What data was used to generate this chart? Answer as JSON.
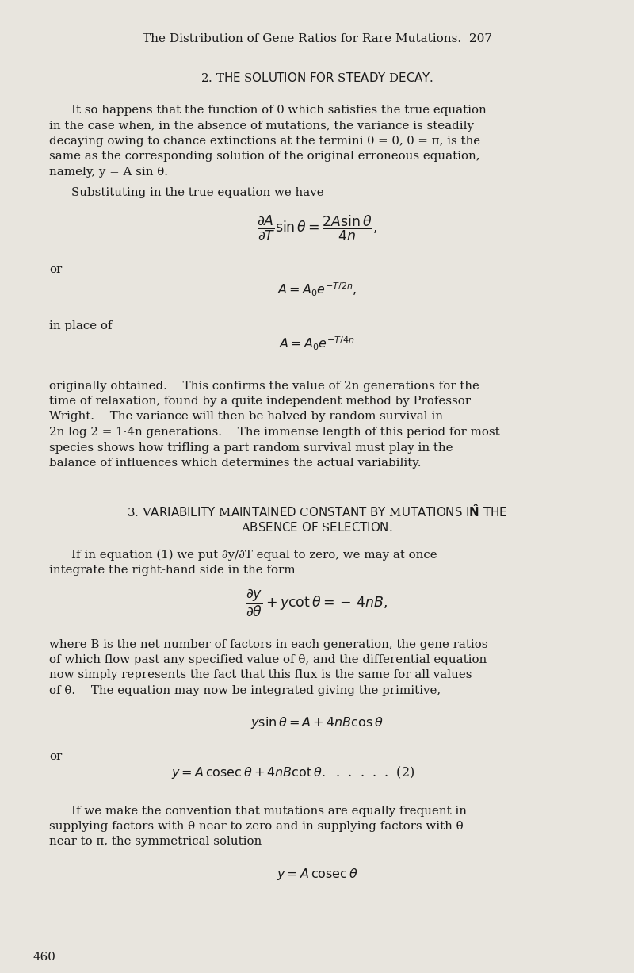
{
  "bg_color": "#e8e5de",
  "text_color": "#1a1a1a",
  "page_width": 8.0,
  "page_height": 12.27,
  "dpi": 100,
  "body_lines_1": [
    "It so happens that the function of θ which satisfies the true equation",
    "in the case when, in the absence of mutations, the variance is steadily",
    "decaying owing to chance extinctions at the termini θ = 0, θ = π, is the",
    "same as the corresponding solution of the original erroneous equation,",
    "namely, y = A sin θ."
  ],
  "body_lines_2": [
    "originally obtained.  This confirms the value of 2n generations for the",
    "time of relaxation, found by a quite independent method by Professor",
    "Wright.  The variance will then be halved by random survival in",
    "2n log 2 = 1·4n generations.  The immense length of this period for most",
    "species shows how trifling a part random survival must play in the",
    "balance of influences which determines the actual variability."
  ],
  "body_lines_3": [
    "If in equation (1) we put ∂y/∂T equal to zero, we may at once",
    "integrate the right-hand side in the form"
  ],
  "body_lines_4": [
    "where B is the net number of factors in each generation, the gene ratios",
    "of which flow past any specified value of θ, and the differential equation",
    "now simply represents the fact that this flux is the same for all values",
    "of θ.  The equation may now be integrated giving the primitive,"
  ],
  "body_lines_5": [
    "If we make the convention that mutations are equally frequent in",
    "supplying factors with θ near to zero and in supplying factors with θ",
    "near to π, the symmetrical solution"
  ]
}
